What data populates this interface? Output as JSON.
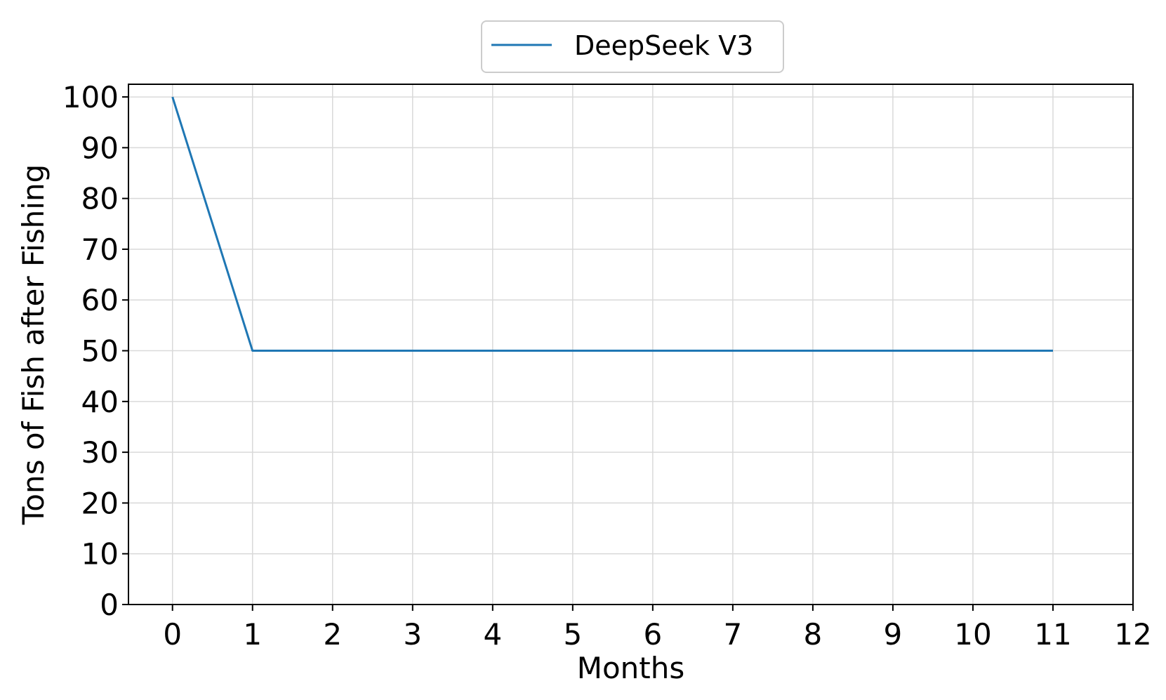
{
  "chart_data": {
    "type": "line",
    "title": "",
    "xlabel": "Months",
    "ylabel": "Tons of Fish after Fishing",
    "xlim": [
      -0.55,
      12
    ],
    "ylim": [
      0,
      102.5
    ],
    "xticks": [
      "0",
      "1",
      "2",
      "3",
      "4",
      "5",
      "6",
      "7",
      "8",
      "9",
      "10",
      "11",
      "12"
    ],
    "yticks": [
      "0",
      "10",
      "20",
      "30",
      "40",
      "50",
      "60",
      "70",
      "80",
      "90",
      "100"
    ],
    "grid": true,
    "legend": "top-center",
    "series": [
      {
        "name": "DeepSeek V3",
        "color": "#1f77b4",
        "x": [
          0,
          1,
          2,
          3,
          4,
          5,
          6,
          7,
          8,
          9,
          10,
          11
        ],
        "y": [
          100,
          50,
          50,
          50,
          50,
          50,
          50,
          50,
          50,
          50,
          50,
          50
        ]
      }
    ]
  }
}
